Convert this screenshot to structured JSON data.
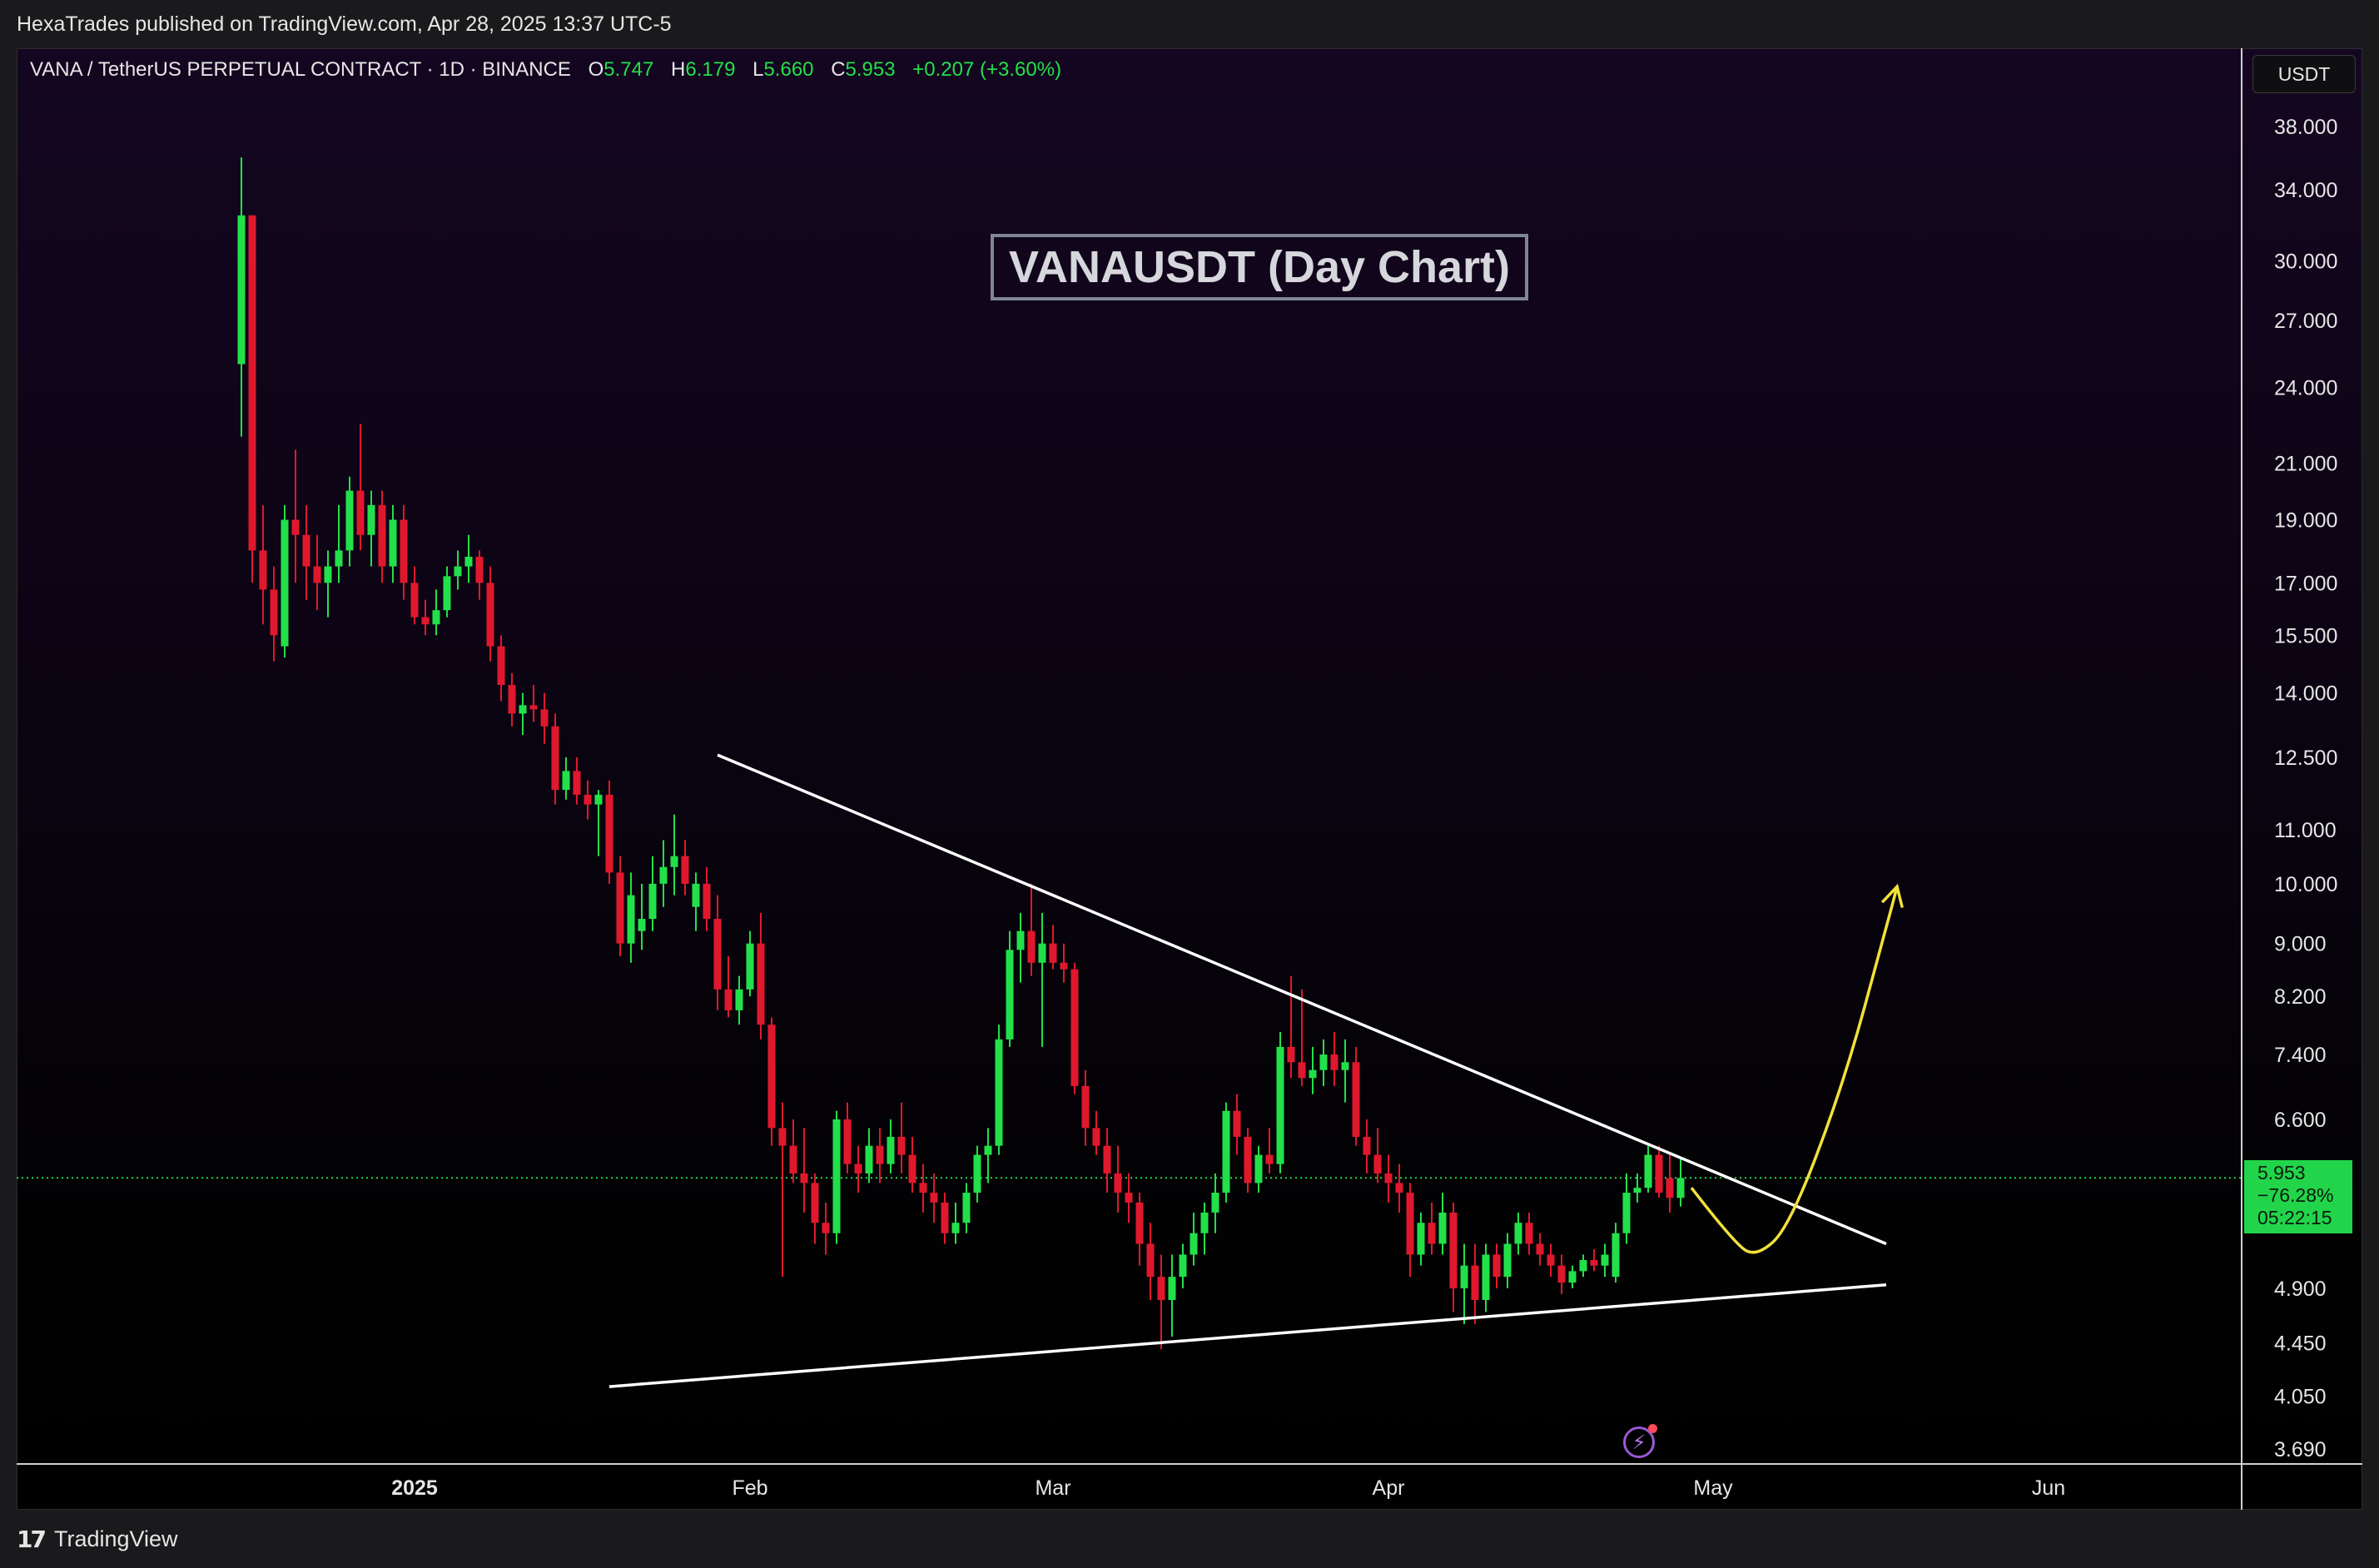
{
  "header": {
    "publisher_line": "HexaTrades published on TradingView.com, Apr 28, 2025 13:37 UTC-5"
  },
  "legend": {
    "symbol": "VANA / TetherUS PERPETUAL CONTRACT · 1D · BINANCE",
    "open_label": "O",
    "open": "5.747",
    "high_label": "H",
    "high": "6.179",
    "low_label": "L",
    "low": "5.660",
    "close_label": "C",
    "close": "5.953",
    "change": "+0.207 (+3.60%)"
  },
  "annotation_title": "VANAUSDT (Day Chart)",
  "price_axis": {
    "currency": "USDT",
    "last_price": "5.953",
    "last_change": "−76.28%",
    "countdown": "05:22:15"
  },
  "footer": {
    "brand": "TradingView"
  },
  "colors": {
    "up": "#22e04a",
    "down": "#e0182d",
    "trendline": "#ffffff",
    "projection": "#f2e23a",
    "last_price_tag": "#22d44a"
  },
  "chart_data": {
    "type": "candlestick",
    "scale": "log",
    "interval": "1D",
    "ylim": [
      3.6,
      43
    ],
    "y_ticks": [
      38.0,
      34.0,
      30.0,
      27.0,
      24.0,
      21.0,
      19.0,
      17.0,
      15.5,
      14.0,
      12.5,
      11.0,
      10.0,
      9.0,
      8.2,
      7.4,
      6.6,
      4.9,
      4.45,
      4.05,
      3.69
    ],
    "y_tick_labels": [
      "38.000",
      "34.000",
      "30.000",
      "27.000",
      "24.000",
      "21.000",
      "19.000",
      "17.000",
      "15.500",
      "14.000",
      "12.500",
      "11.000",
      "10.000",
      "9.000",
      "8.200",
      "7.400",
      "6.600",
      "4.900",
      "4.450",
      "4.050",
      "3.690"
    ],
    "x_range": [
      "2024-12-16",
      "2025-06-15"
    ],
    "x_ticks": [
      {
        "date": "2025-01-01",
        "label": "2025",
        "bold": true
      },
      {
        "date": "2025-02-01",
        "label": "Feb"
      },
      {
        "date": "2025-03-01",
        "label": "Mar"
      },
      {
        "date": "2025-04-01",
        "label": "Apr"
      },
      {
        "date": "2025-05-01",
        "label": "May"
      },
      {
        "date": "2025-06-01",
        "label": "Jun"
      }
    ],
    "candles": [
      {
        "d": "2024-12-16",
        "o": 25.0,
        "h": 36.0,
        "l": 22.0,
        "c": 32.5
      },
      {
        "d": "2024-12-17",
        "o": 32.5,
        "h": 32.5,
        "l": 17.0,
        "c": 18.0
      },
      {
        "d": "2024-12-18",
        "o": 18.0,
        "h": 19.5,
        "l": 15.8,
        "c": 16.8
      },
      {
        "d": "2024-12-19",
        "o": 16.8,
        "h": 17.5,
        "l": 14.8,
        "c": 15.5
      },
      {
        "d": "2024-12-20",
        "o": 15.2,
        "h": 19.5,
        "l": 14.9,
        "c": 19.0
      },
      {
        "d": "2024-12-21",
        "o": 19.0,
        "h": 21.5,
        "l": 17.0,
        "c": 18.5
      },
      {
        "d": "2024-12-22",
        "o": 18.5,
        "h": 19.5,
        "l": 16.5,
        "c": 17.5
      },
      {
        "d": "2024-12-23",
        "o": 17.5,
        "h": 18.5,
        "l": 16.2,
        "c": 17.0
      },
      {
        "d": "2024-12-24",
        "o": 17.0,
        "h": 18.0,
        "l": 16.0,
        "c": 17.5
      },
      {
        "d": "2024-12-25",
        "o": 17.5,
        "h": 19.5,
        "l": 17.0,
        "c": 18.0
      },
      {
        "d": "2024-12-26",
        "o": 18.0,
        "h": 20.5,
        "l": 17.5,
        "c": 20.0
      },
      {
        "d": "2024-12-27",
        "o": 20.0,
        "h": 22.5,
        "l": 18.0,
        "c": 18.5
      },
      {
        "d": "2024-12-28",
        "o": 18.5,
        "h": 20.0,
        "l": 17.5,
        "c": 19.5
      },
      {
        "d": "2024-12-29",
        "o": 19.5,
        "h": 20.0,
        "l": 17.0,
        "c": 17.5
      },
      {
        "d": "2024-12-30",
        "o": 17.5,
        "h": 19.5,
        "l": 17.0,
        "c": 19.0
      },
      {
        "d": "2024-12-31",
        "o": 19.0,
        "h": 19.5,
        "l": 16.5,
        "c": 17.0
      },
      {
        "d": "2025-01-01",
        "o": 17.0,
        "h": 17.5,
        "l": 15.8,
        "c": 16.0
      },
      {
        "d": "2025-01-02",
        "o": 16.0,
        "h": 16.5,
        "l": 15.5,
        "c": 15.8
      },
      {
        "d": "2025-01-03",
        "o": 15.8,
        "h": 16.8,
        "l": 15.5,
        "c": 16.2
      },
      {
        "d": "2025-01-04",
        "o": 16.2,
        "h": 17.5,
        "l": 16.0,
        "c": 17.2
      },
      {
        "d": "2025-01-05",
        "o": 17.2,
        "h": 18.0,
        "l": 16.8,
        "c": 17.5
      },
      {
        "d": "2025-01-06",
        "o": 17.5,
        "h": 18.5,
        "l": 17.0,
        "c": 17.8
      },
      {
        "d": "2025-01-07",
        "o": 17.8,
        "h": 18.0,
        "l": 16.5,
        "c": 17.0
      },
      {
        "d": "2025-01-08",
        "o": 17.0,
        "h": 17.5,
        "l": 14.8,
        "c": 15.2
      },
      {
        "d": "2025-01-09",
        "o": 15.2,
        "h": 15.5,
        "l": 13.8,
        "c": 14.2
      },
      {
        "d": "2025-01-10",
        "o": 14.2,
        "h": 14.5,
        "l": 13.2,
        "c": 13.5
      },
      {
        "d": "2025-01-11",
        "o": 13.5,
        "h": 14.0,
        "l": 13.0,
        "c": 13.7
      },
      {
        "d": "2025-01-12",
        "o": 13.7,
        "h": 14.2,
        "l": 13.3,
        "c": 13.6
      },
      {
        "d": "2025-01-13",
        "o": 13.6,
        "h": 14.0,
        "l": 12.8,
        "c": 13.2
      },
      {
        "d": "2025-01-14",
        "o": 13.2,
        "h": 13.5,
        "l": 11.5,
        "c": 11.8
      },
      {
        "d": "2025-01-15",
        "o": 11.8,
        "h": 12.5,
        "l": 11.6,
        "c": 12.2
      },
      {
        "d": "2025-01-16",
        "o": 12.2,
        "h": 12.5,
        "l": 11.5,
        "c": 11.7
      },
      {
        "d": "2025-01-17",
        "o": 11.7,
        "h": 12.0,
        "l": 11.2,
        "c": 11.5
      },
      {
        "d": "2025-01-18",
        "o": 11.5,
        "h": 11.8,
        "l": 10.5,
        "c": 11.7
      },
      {
        "d": "2025-01-19",
        "o": 11.7,
        "h": 12.0,
        "l": 10.0,
        "c": 10.2
      },
      {
        "d": "2025-01-20",
        "o": 10.2,
        "h": 10.5,
        "l": 8.8,
        "c": 9.0
      },
      {
        "d": "2025-01-21",
        "o": 9.0,
        "h": 10.2,
        "l": 8.7,
        "c": 9.8
      },
      {
        "d": "2025-01-22",
        "o": 9.2,
        "h": 10.0,
        "l": 8.9,
        "c": 9.4
      },
      {
        "d": "2025-01-23",
        "o": 9.4,
        "h": 10.5,
        "l": 9.2,
        "c": 10.0
      },
      {
        "d": "2025-01-24",
        "o": 10.0,
        "h": 10.8,
        "l": 9.6,
        "c": 10.3
      },
      {
        "d": "2025-01-25",
        "o": 10.3,
        "h": 11.3,
        "l": 9.8,
        "c": 10.5
      },
      {
        "d": "2025-01-26",
        "o": 10.5,
        "h": 10.8,
        "l": 9.8,
        "c": 10.0
      },
      {
        "d": "2025-01-27",
        "o": 9.6,
        "h": 10.2,
        "l": 9.2,
        "c": 10.0
      },
      {
        "d": "2025-01-28",
        "o": 10.0,
        "h": 10.3,
        "l": 9.2,
        "c": 9.4
      },
      {
        "d": "2025-01-29",
        "o": 9.4,
        "h": 9.8,
        "l": 8.0,
        "c": 8.3
      },
      {
        "d": "2025-01-30",
        "o": 8.3,
        "h": 8.8,
        "l": 7.9,
        "c": 8.0
      },
      {
        "d": "2025-01-31",
        "o": 8.0,
        "h": 8.5,
        "l": 7.8,
        "c": 8.3
      },
      {
        "d": "2025-02-01",
        "o": 8.3,
        "h": 9.2,
        "l": 8.2,
        "c": 9.0
      },
      {
        "d": "2025-02-02",
        "o": 9.0,
        "h": 9.5,
        "l": 7.6,
        "c": 7.8
      },
      {
        "d": "2025-02-03",
        "o": 7.8,
        "h": 7.9,
        "l": 6.3,
        "c": 6.5
      },
      {
        "d": "2025-02-04",
        "o": 6.5,
        "h": 6.8,
        "l": 5.0,
        "c": 6.3
      },
      {
        "d": "2025-02-05",
        "o": 6.3,
        "h": 6.6,
        "l": 5.9,
        "c": 6.0
      },
      {
        "d": "2025-02-06",
        "o": 6.0,
        "h": 6.5,
        "l": 5.6,
        "c": 5.9
      },
      {
        "d": "2025-02-07",
        "o": 5.9,
        "h": 6.0,
        "l": 5.3,
        "c": 5.5
      },
      {
        "d": "2025-02-08",
        "o": 5.5,
        "h": 5.7,
        "l": 5.2,
        "c": 5.4
      },
      {
        "d": "2025-02-09",
        "o": 5.4,
        "h": 6.7,
        "l": 5.3,
        "c": 6.6
      },
      {
        "d": "2025-02-10",
        "o": 6.6,
        "h": 6.8,
        "l": 6.0,
        "c": 6.1
      },
      {
        "d": "2025-02-11",
        "o": 6.1,
        "h": 6.3,
        "l": 5.8,
        "c": 6.0
      },
      {
        "d": "2025-02-12",
        "o": 6.0,
        "h": 6.5,
        "l": 5.9,
        "c": 6.3
      },
      {
        "d": "2025-02-13",
        "o": 6.3,
        "h": 6.5,
        "l": 5.9,
        "c": 6.1
      },
      {
        "d": "2025-02-14",
        "o": 6.1,
        "h": 6.6,
        "l": 6.0,
        "c": 6.4
      },
      {
        "d": "2025-02-15",
        "o": 6.4,
        "h": 6.8,
        "l": 6.0,
        "c": 6.2
      },
      {
        "d": "2025-02-16",
        "o": 6.2,
        "h": 6.4,
        "l": 5.8,
        "c": 5.9
      },
      {
        "d": "2025-02-17",
        "o": 5.9,
        "h": 6.1,
        "l": 5.6,
        "c": 5.8
      },
      {
        "d": "2025-02-18",
        "o": 5.8,
        "h": 6.0,
        "l": 5.5,
        "c": 5.7
      },
      {
        "d": "2025-02-19",
        "o": 5.7,
        "h": 5.8,
        "l": 5.3,
        "c": 5.4
      },
      {
        "d": "2025-02-20",
        "o": 5.4,
        "h": 5.7,
        "l": 5.3,
        "c": 5.5
      },
      {
        "d": "2025-02-21",
        "o": 5.5,
        "h": 5.9,
        "l": 5.4,
        "c": 5.8
      },
      {
        "d": "2025-02-22",
        "o": 5.8,
        "h": 6.3,
        "l": 5.7,
        "c": 6.2
      },
      {
        "d": "2025-02-23",
        "o": 6.2,
        "h": 6.5,
        "l": 5.9,
        "c": 6.3
      },
      {
        "d": "2025-02-24",
        "o": 6.3,
        "h": 7.8,
        "l": 6.2,
        "c": 7.6
      },
      {
        "d": "2025-02-25",
        "o": 7.6,
        "h": 9.2,
        "l": 7.5,
        "c": 8.9
      },
      {
        "d": "2025-02-26",
        "o": 8.9,
        "h": 9.5,
        "l": 8.4,
        "c": 9.2
      },
      {
        "d": "2025-02-27",
        "o": 9.2,
        "h": 10.0,
        "l": 8.5,
        "c": 8.7
      },
      {
        "d": "2025-02-28",
        "o": 8.7,
        "h": 9.5,
        "l": 7.5,
        "c": 9.0
      },
      {
        "d": "2025-03-01",
        "o": 9.0,
        "h": 9.3,
        "l": 8.6,
        "c": 8.7
      },
      {
        "d": "2025-03-02",
        "o": 8.7,
        "h": 9.0,
        "l": 8.4,
        "c": 8.6
      },
      {
        "d": "2025-03-03",
        "o": 8.6,
        "h": 8.7,
        "l": 6.9,
        "c": 7.0
      },
      {
        "d": "2025-03-04",
        "o": 7.0,
        "h": 7.2,
        "l": 6.3,
        "c": 6.5
      },
      {
        "d": "2025-03-05",
        "o": 6.5,
        "h": 6.7,
        "l": 6.2,
        "c": 6.3
      },
      {
        "d": "2025-03-06",
        "o": 6.3,
        "h": 6.5,
        "l": 5.8,
        "c": 6.0
      },
      {
        "d": "2025-03-07",
        "o": 6.0,
        "h": 6.3,
        "l": 5.6,
        "c": 5.8
      },
      {
        "d": "2025-03-08",
        "o": 5.8,
        "h": 6.0,
        "l": 5.5,
        "c": 5.7
      },
      {
        "d": "2025-03-09",
        "o": 5.7,
        "h": 5.8,
        "l": 5.1,
        "c": 5.3
      },
      {
        "d": "2025-03-10",
        "o": 5.3,
        "h": 5.5,
        "l": 4.8,
        "c": 5.0
      },
      {
        "d": "2025-03-11",
        "o": 5.0,
        "h": 5.2,
        "l": 4.4,
        "c": 4.8
      },
      {
        "d": "2025-03-12",
        "o": 4.8,
        "h": 5.2,
        "l": 4.5,
        "c": 5.0
      },
      {
        "d": "2025-03-13",
        "o": 5.0,
        "h": 5.3,
        "l": 4.9,
        "c": 5.2
      },
      {
        "d": "2025-03-14",
        "o": 5.2,
        "h": 5.6,
        "l": 5.1,
        "c": 5.4
      },
      {
        "d": "2025-03-15",
        "o": 5.4,
        "h": 5.7,
        "l": 5.2,
        "c": 5.6
      },
      {
        "d": "2025-03-16",
        "o": 5.6,
        "h": 6.0,
        "l": 5.4,
        "c": 5.8
      },
      {
        "d": "2025-03-17",
        "o": 5.8,
        "h": 6.8,
        "l": 5.7,
        "c": 6.7
      },
      {
        "d": "2025-03-18",
        "o": 6.7,
        "h": 6.9,
        "l": 6.2,
        "c": 6.4
      },
      {
        "d": "2025-03-19",
        "o": 6.4,
        "h": 6.5,
        "l": 5.8,
        "c": 5.9
      },
      {
        "d": "2025-03-20",
        "o": 5.9,
        "h": 6.3,
        "l": 5.8,
        "c": 6.2
      },
      {
        "d": "2025-03-21",
        "o": 6.2,
        "h": 6.5,
        "l": 6.0,
        "c": 6.1
      },
      {
        "d": "2025-03-22",
        "o": 6.1,
        "h": 7.7,
        "l": 6.0,
        "c": 7.5
      },
      {
        "d": "2025-03-23",
        "o": 7.5,
        "h": 8.5,
        "l": 7.1,
        "c": 7.3
      },
      {
        "d": "2025-03-24",
        "o": 7.3,
        "h": 8.3,
        "l": 7.0,
        "c": 7.1
      },
      {
        "d": "2025-03-25",
        "o": 7.1,
        "h": 7.5,
        "l": 6.9,
        "c": 7.2
      },
      {
        "d": "2025-03-26",
        "o": 7.2,
        "h": 7.6,
        "l": 7.0,
        "c": 7.4
      },
      {
        "d": "2025-03-27",
        "o": 7.4,
        "h": 7.7,
        "l": 7.0,
        "c": 7.2
      },
      {
        "d": "2025-03-28",
        "o": 7.2,
        "h": 7.6,
        "l": 6.8,
        "c": 7.3
      },
      {
        "d": "2025-03-29",
        "o": 7.3,
        "h": 7.5,
        "l": 6.3,
        "c": 6.4
      },
      {
        "d": "2025-03-30",
        "o": 6.4,
        "h": 6.6,
        "l": 6.0,
        "c": 6.2
      },
      {
        "d": "2025-03-31",
        "o": 6.2,
        "h": 6.5,
        "l": 5.9,
        "c": 6.0
      },
      {
        "d": "2025-04-01",
        "o": 6.0,
        "h": 6.2,
        "l": 5.7,
        "c": 5.9
      },
      {
        "d": "2025-04-02",
        "o": 5.9,
        "h": 6.1,
        "l": 5.6,
        "c": 5.8
      },
      {
        "d": "2025-04-03",
        "o": 5.8,
        "h": 5.9,
        "l": 5.0,
        "c": 5.2
      },
      {
        "d": "2025-04-04",
        "o": 5.2,
        "h": 5.6,
        "l": 5.1,
        "c": 5.5
      },
      {
        "d": "2025-04-05",
        "o": 5.5,
        "h": 5.7,
        "l": 5.2,
        "c": 5.3
      },
      {
        "d": "2025-04-06",
        "o": 5.3,
        "h": 5.8,
        "l": 5.2,
        "c": 5.6
      },
      {
        "d": "2025-04-07",
        "o": 5.6,
        "h": 5.7,
        "l": 4.7,
        "c": 4.9
      },
      {
        "d": "2025-04-08",
        "o": 4.9,
        "h": 5.3,
        "l": 4.6,
        "c": 5.1
      },
      {
        "d": "2025-04-09",
        "o": 5.1,
        "h": 5.3,
        "l": 4.6,
        "c": 4.8
      },
      {
        "d": "2025-04-10",
        "o": 4.8,
        "h": 5.3,
        "l": 4.7,
        "c": 5.2
      },
      {
        "d": "2025-04-11",
        "o": 5.2,
        "h": 5.3,
        "l": 4.9,
        "c": 5.0
      },
      {
        "d": "2025-04-12",
        "o": 5.0,
        "h": 5.4,
        "l": 4.9,
        "c": 5.3
      },
      {
        "d": "2025-04-13",
        "o": 5.3,
        "h": 5.6,
        "l": 5.2,
        "c": 5.5
      },
      {
        "d": "2025-04-14",
        "o": 5.5,
        "h": 5.6,
        "l": 5.2,
        "c": 5.3
      },
      {
        "d": "2025-04-15",
        "o": 5.3,
        "h": 5.4,
        "l": 5.1,
        "c": 5.2
      },
      {
        "d": "2025-04-16",
        "o": 5.2,
        "h": 5.3,
        "l": 5.0,
        "c": 5.1
      },
      {
        "d": "2025-04-17",
        "o": 5.1,
        "h": 5.2,
        "l": 4.85,
        "c": 4.95
      },
      {
        "d": "2025-04-18",
        "o": 4.95,
        "h": 5.1,
        "l": 4.9,
        "c": 5.05
      },
      {
        "d": "2025-04-19",
        "o": 5.05,
        "h": 5.2,
        "l": 5.0,
        "c": 5.15
      },
      {
        "d": "2025-04-20",
        "o": 5.15,
        "h": 5.25,
        "l": 5.05,
        "c": 5.1
      },
      {
        "d": "2025-04-21",
        "o": 5.1,
        "h": 5.3,
        "l": 5.0,
        "c": 5.2
      },
      {
        "d": "2025-04-22",
        "o": 5.0,
        "h": 5.5,
        "l": 4.95,
        "c": 5.4
      },
      {
        "d": "2025-04-23",
        "o": 5.4,
        "h": 6.0,
        "l": 5.3,
        "c": 5.8
      },
      {
        "d": "2025-04-24",
        "o": 5.8,
        "h": 6.0,
        "l": 5.7,
        "c": 5.85
      },
      {
        "d": "2025-04-25",
        "o": 5.85,
        "h": 6.3,
        "l": 5.8,
        "c": 6.2
      },
      {
        "d": "2025-04-26",
        "o": 6.2,
        "h": 6.3,
        "l": 5.75,
        "c": 5.8
      },
      {
        "d": "2025-04-27",
        "o": 5.95,
        "h": 6.2,
        "l": 5.6,
        "c": 5.747
      },
      {
        "d": "2025-04-28",
        "o": 5.747,
        "h": 6.179,
        "l": 5.66,
        "c": 5.953
      }
    ],
    "trendlines": [
      {
        "name": "descending-resistance",
        "from": {
          "d": "2025-01-29",
          "v": 12.55
        },
        "to": {
          "d": "2025-05-17",
          "v": 5.3
        }
      },
      {
        "name": "ascending-support",
        "from": {
          "d": "2025-01-19",
          "v": 4.12
        },
        "to": {
          "d": "2025-05-17",
          "v": 4.93
        }
      }
    ],
    "projection_path": [
      {
        "d": "2025-04-29",
        "v": 5.85
      },
      {
        "d": "2025-05-03",
        "v": 5.3
      },
      {
        "d": "2025-05-05",
        "v": 5.18
      },
      {
        "d": "2025-05-08",
        "v": 5.45
      },
      {
        "d": "2025-05-13",
        "v": 7.0
      },
      {
        "d": "2025-05-17",
        "v": 9.25
      },
      {
        "d": "2025-05-18",
        "v": 9.95
      }
    ]
  }
}
